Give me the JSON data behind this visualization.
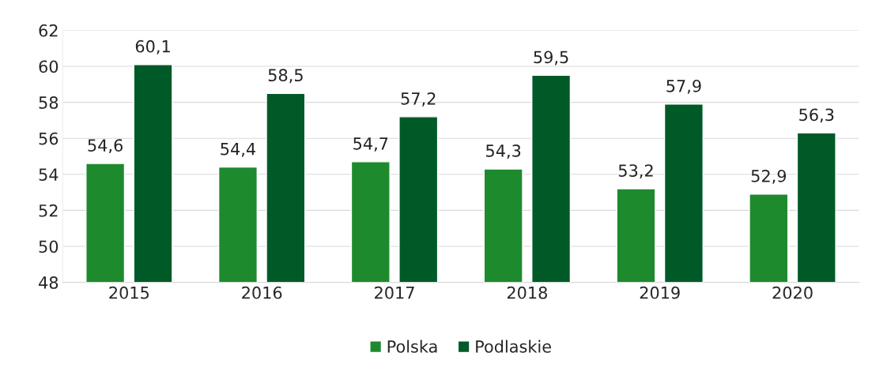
{
  "chart_data": {
    "type": "bar",
    "categories": [
      "2015",
      "2016",
      "2017",
      "2018",
      "2019",
      "2020"
    ],
    "series": [
      {
        "name": "Polska",
        "color": "#1e8a2e",
        "values": [
          54.6,
          54.4,
          54.7,
          54.3,
          53.2,
          52.9
        ],
        "value_labels": [
          "54,6",
          "54,4",
          "54,7",
          "54,3",
          "53,2",
          "52,9"
        ]
      },
      {
        "name": "Podlaskie",
        "color": "#005a27",
        "values": [
          60.1,
          58.5,
          57.2,
          59.5,
          57.9,
          56.3
        ],
        "value_labels": [
          "60,1",
          "58,5",
          "57,2",
          "59,5",
          "57,9",
          "56,3"
        ]
      }
    ],
    "ylim": [
      48,
      62
    ],
    "yticks": [
      48,
      50,
      52,
      54,
      56,
      58,
      60,
      62
    ],
    "grid": "y",
    "legend": "bottom"
  }
}
